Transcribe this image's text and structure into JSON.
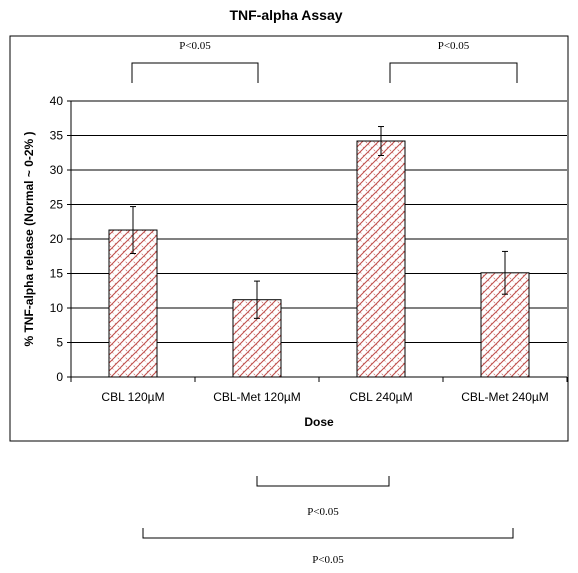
{
  "chart_data": {
    "type": "bar",
    "title": "TNF-alpha Assay",
    "xlabel": "Dose",
    "ylabel": "% TNF-alpha release (Normal ~ 0-2% )",
    "categories": [
      "CBL 120µM",
      "CBL-Met 120µM",
      "CBL 240µM",
      "CBL-Met 240µM"
    ],
    "values": [
      21.3,
      11.2,
      34.2,
      15.1
    ],
    "errors": [
      3.4,
      2.7,
      2.1,
      3.1
    ],
    "ylim": [
      0,
      40
    ],
    "yticks": [
      "0",
      "5",
      "10",
      "15",
      "20",
      "25",
      "30",
      "35",
      "40"
    ],
    "grid": true,
    "bar_fill": "red crosshatch",
    "colors": {
      "bar_pattern": "#c0504d",
      "axis": "#000000",
      "grid": "#000000"
    },
    "significance": [
      {
        "pair": [
          0,
          1
        ],
        "label": "P<0.05",
        "position": "above"
      },
      {
        "pair": [
          2,
          3
        ],
        "label": "P<0.05",
        "position": "above"
      },
      {
        "pair": [
          1,
          2
        ],
        "label": "P<0.05",
        "position": "below"
      },
      {
        "pair": [
          0,
          3
        ],
        "label": "P<0.05",
        "position": "below"
      }
    ]
  }
}
